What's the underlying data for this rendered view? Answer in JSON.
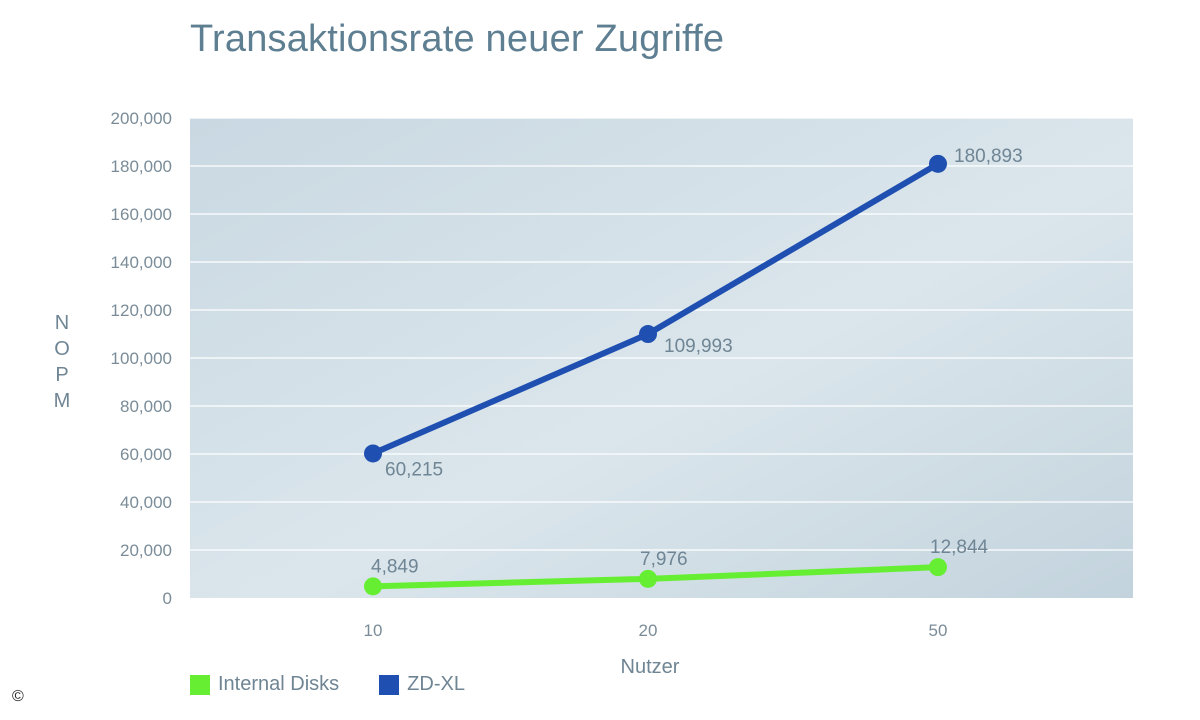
{
  "chart_data": {
    "type": "line",
    "title": "Transaktionsrate neuer Zugriffe",
    "xlabel": "Nutzer",
    "ylabel": "NOPM",
    "categories": [
      "10",
      "20",
      "50"
    ],
    "ylim": [
      0,
      200000
    ],
    "yticks": [
      0,
      20000,
      40000,
      60000,
      80000,
      100000,
      120000,
      140000,
      160000,
      180000,
      200000
    ],
    "ytick_labels": [
      "0",
      "20,000",
      "40,000",
      "60,000",
      "80,000",
      "100,000",
      "120,000",
      "140,000",
      "160,000",
      "180,000",
      "200,000"
    ],
    "grid": true,
    "legend_position": "bottom-left",
    "series": [
      {
        "name": "Internal Disks",
        "color": "#66ee33",
        "values": [
          4849,
          7976,
          12844
        ],
        "labels": [
          "4,849",
          "7,976",
          "12,844"
        ]
      },
      {
        "name": "ZD-XL",
        "color": "#1f4fb0",
        "values": [
          60215,
          109993,
          180893
        ],
        "labels": [
          "60,215",
          "109,993",
          "180,893"
        ]
      }
    ]
  },
  "copyright_symbol": "©"
}
